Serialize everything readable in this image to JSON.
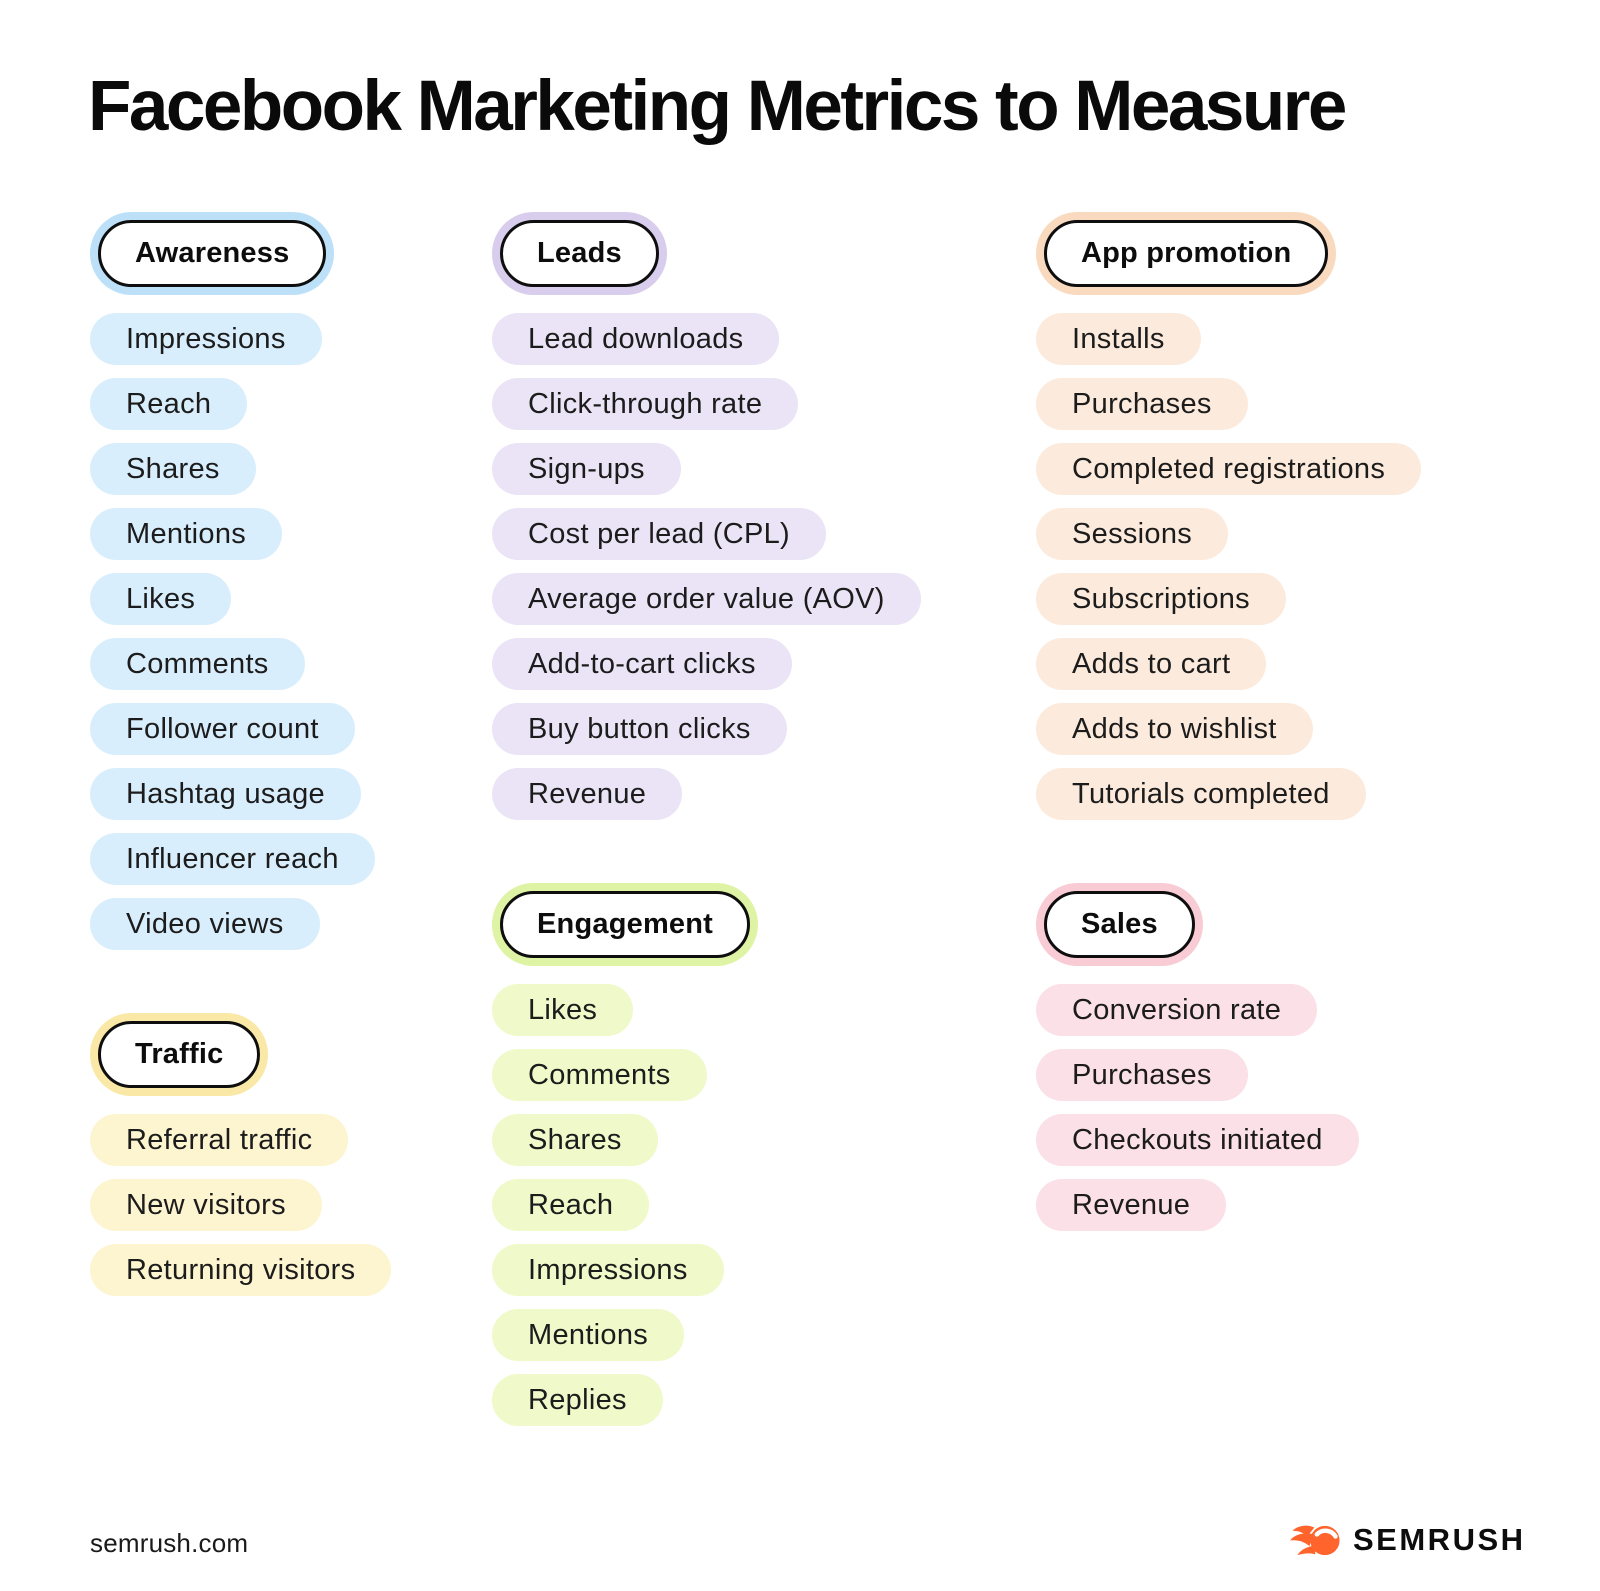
{
  "title": "Facebook Marketing Metrics to Measure",
  "footer": {
    "site": "semrush.com",
    "brand": "SEMRUSH",
    "brand_color": "#FF642D"
  },
  "colors": {
    "background": "#FFFFFF",
    "text": "#1C1C1C",
    "badge_border": "#0E0E0E"
  },
  "sections": {
    "awareness": {
      "label": "Awareness",
      "glow": "#BCE0F8",
      "pill": "#D9EEFC",
      "items": [
        "Impressions",
        "Reach",
        "Shares",
        "Mentions",
        "Likes",
        "Comments",
        "Follower count",
        "Hashtag usage",
        "Influencer reach",
        "Video views"
      ]
    },
    "traffic": {
      "label": "Traffic",
      "glow": "#FAE8A6",
      "pill": "#FDF4D0",
      "items": [
        "Referral traffic",
        "New visitors",
        "Returning visitors"
      ]
    },
    "leads": {
      "label": "Leads",
      "glow": "#D8CDEC",
      "pill": "#EAE4F6",
      "items": [
        "Lead downloads",
        "Click-through rate",
        "Sign-ups",
        "Cost per lead (CPL)",
        "Average order value (AOV)",
        "Add-to-cart clicks",
        "Buy button clicks",
        "Revenue"
      ]
    },
    "engagement": {
      "label": "Engagement",
      "glow": "#DFF3A4",
      "pill": "#EFF9C9",
      "items": [
        "Likes",
        "Comments",
        "Shares",
        "Reach",
        "Impressions",
        "Mentions",
        "Replies"
      ]
    },
    "app_promotion": {
      "label": "App promotion",
      "glow": "#F9DABF",
      "pill": "#FCEBDC",
      "items": [
        "Installs",
        "Purchases",
        "Completed registrations",
        "Sessions",
        "Subscriptions",
        "Adds to cart",
        "Adds to wishlist",
        "Tutorials completed"
      ]
    },
    "sales": {
      "label": "Sales",
      "glow": "#F8CBD5",
      "pill": "#FBE0E7",
      "items": [
        "Conversion rate",
        "Purchases",
        "Checkouts initiated",
        "Revenue"
      ]
    }
  },
  "columns": [
    [
      "awareness",
      "traffic"
    ],
    [
      "leads",
      "engagement"
    ],
    [
      "app_promotion",
      "sales"
    ]
  ]
}
